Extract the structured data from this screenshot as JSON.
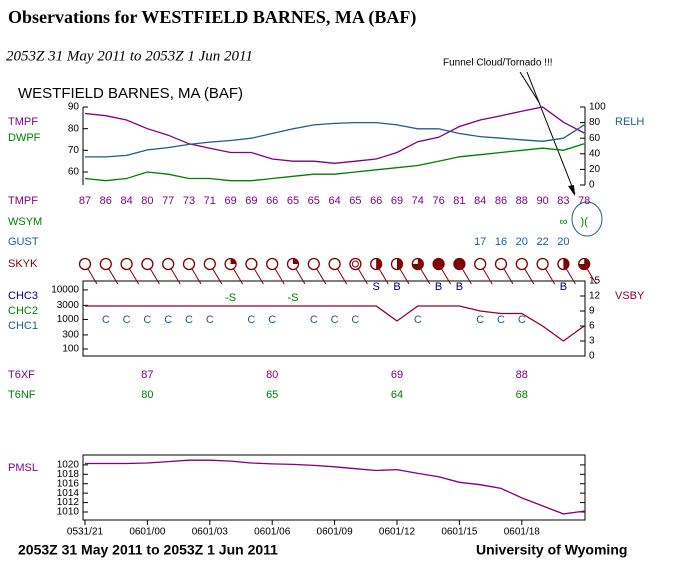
{
  "title": "Observations for WESTFIELD BARNES, MA (BAF)",
  "period": "2053Z 31 May 2011 to 2053Z 1 Jun 2011",
  "annotation": "Funnel Cloud/Tornado !!!",
  "footer": {
    "period": "2053Z 31 May 2011 to 2053Z  1 Jun 2011",
    "credit": "University of Wyoming"
  },
  "chart_data": [
    {
      "type": "line",
      "title": "WESTFIELD BARNES, MA (BAF)",
      "ylim": [
        54,
        90
      ],
      "yticks": [
        60,
        70,
        80,
        90
      ],
      "y2lim": [
        0,
        100
      ],
      "y2ticks": [
        0,
        20,
        40,
        60,
        80,
        100
      ],
      "series": [
        {
          "name": "TMPF",
          "color": "#7f007f",
          "values": [
            87,
            86,
            84,
            80,
            77,
            73,
            71,
            69,
            69,
            66,
            65,
            65,
            64,
            65,
            66,
            69,
            74,
            76,
            81,
            84,
            86,
            88,
            90,
            83,
            78
          ]
        },
        {
          "name": "DWPF",
          "color": "#007f00",
          "values": [
            57,
            56,
            57,
            60,
            59,
            57,
            57,
            56,
            56,
            57,
            58,
            59,
            59,
            60,
            61,
            62,
            63,
            65,
            67,
            68,
            69,
            70,
            71,
            70,
            73
          ]
        },
        {
          "name": "RELH",
          "color": "#1f5f7f",
          "axis": "y2",
          "values": [
            36,
            36,
            38,
            45,
            48,
            52,
            55,
            57,
            60,
            66,
            72,
            77,
            79,
            80,
            80,
            77,
            72,
            72,
            66,
            62,
            60,
            58,
            56,
            60,
            77
          ]
        }
      ]
    },
    {
      "type": "rows",
      "rows": [
        {
          "name": "WSYM",
          "color": "#007f00",
          "values": [
            null,
            null,
            null,
            null,
            null,
            null,
            null,
            null,
            null,
            null,
            null,
            null,
            null,
            null,
            null,
            null,
            null,
            null,
            null,
            null,
            null,
            null,
            null,
            "∞",
            ")("
          ]
        },
        {
          "name": "GUST",
          "color": "#1f5f9f",
          "values": [
            null,
            null,
            null,
            null,
            null,
            null,
            null,
            null,
            null,
            null,
            null,
            null,
            null,
            null,
            null,
            null,
            null,
            null,
            null,
            17,
            16,
            20,
            22,
            20,
            null
          ]
        },
        {
          "name": "SKYK",
          "color": "#7f0000"
        }
      ]
    },
    {
      "type": "line",
      "ylim": [
        58,
        20000
      ],
      "ylog": true,
      "yticks": [
        100,
        300,
        1000,
        3000,
        10000
      ],
      "y2lim": [
        0,
        15
      ],
      "y2ticks": [
        0,
        3,
        6,
        9,
        12,
        15
      ],
      "cloud_rows": [
        {
          "name": "CHC3",
          "color": "#00007f",
          "values": [
            null,
            null,
            null,
            null,
            null,
            null,
            null,
            null,
            null,
            null,
            null,
            null,
            null,
            null,
            "S",
            "B",
            null,
            "B",
            "B",
            null,
            null,
            null,
            null,
            "B",
            null
          ]
        },
        {
          "name": "CHC2",
          "color": "#007f00",
          "values": [
            null,
            null,
            null,
            null,
            null,
            null,
            null,
            "-S",
            null,
            null,
            "-S",
            null,
            null,
            null,
            null,
            null,
            null,
            null,
            null,
            null,
            null,
            null,
            null,
            null,
            null
          ]
        },
        {
          "name": "CHC1",
          "color": "#1f5f7f",
          "values": [
            null,
            "C",
            "C",
            "C",
            "C",
            "C",
            "C",
            null,
            "C",
            "C",
            null,
            "C",
            "C",
            "C",
            null,
            null,
            "C",
            null,
            null,
            "C",
            "C",
            "C",
            null,
            null,
            null
          ]
        }
      ],
      "series": [
        {
          "name": "VSBY",
          "color": "#8f0030",
          "axis": "y2",
          "values": [
            10,
            10,
            10,
            10,
            10,
            10,
            10,
            10,
            10,
            10,
            10,
            10,
            10,
            10,
            10,
            7,
            10,
            10,
            10,
            9,
            8.5,
            8.5,
            6,
            3,
            6
          ]
        }
      ]
    },
    {
      "type": "rows",
      "rows": [
        {
          "name": "T6XF",
          "color": "#7f007f",
          "values": [
            null,
            null,
            null,
            87,
            null,
            null,
            null,
            null,
            null,
            80,
            null,
            null,
            null,
            null,
            null,
            69,
            null,
            null,
            null,
            null,
            null,
            88,
            null,
            null,
            null
          ]
        },
        {
          "name": "T6NF",
          "color": "#007f00",
          "values": [
            null,
            null,
            null,
            80,
            null,
            null,
            null,
            null,
            null,
            65,
            null,
            null,
            null,
            null,
            null,
            64,
            null,
            null,
            null,
            null,
            null,
            68,
            null,
            null,
            null
          ]
        }
      ]
    },
    {
      "type": "line",
      "ylim": [
        1008.3,
        1022.1
      ],
      "yticks": [
        1010,
        1012,
        1014,
        1016,
        1018,
        1020
      ],
      "xticks": [
        {
          "value": 0,
          "label": "0531/21"
        },
        {
          "value": 3,
          "label": "0601/00"
        },
        {
          "value": 6,
          "label": "0601/03"
        },
        {
          "value": 9,
          "label": "0601/06"
        },
        {
          "value": 12,
          "label": "0601/09"
        },
        {
          "value": 15,
          "label": "0601/12"
        },
        {
          "value": 18,
          "label": "0601/15"
        },
        {
          "value": 21,
          "label": "0601/18"
        }
      ],
      "series": [
        {
          "name": "PMSL",
          "color": "#7f007f",
          "values": [
            1020.3,
            1020.3,
            1020.3,
            1020.4,
            1020.7,
            1021,
            1021,
            1020.8,
            1020.4,
            1020.2,
            1020.1,
            1019.9,
            1019.6,
            1019.2,
            1018.8,
            1019,
            1018.2,
            1017.5,
            1016.3,
            1015.8,
            1015,
            1013,
            1011.3,
            1009.6,
            1010.2
          ]
        }
      ]
    }
  ]
}
